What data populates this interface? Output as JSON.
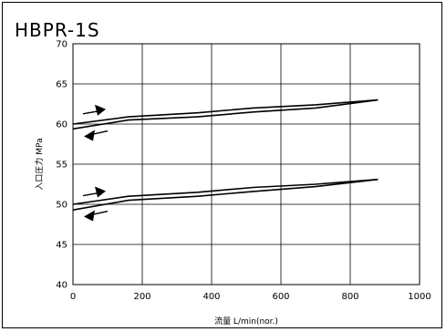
{
  "chart_data": {
    "type": "line",
    "title": "HBPR-1S",
    "xlabel": "流量 L/min(nor.)",
    "ylabel": "入口圧力 MPa",
    "xlim": [
      0,
      1000
    ],
    "ylim": [
      40,
      70
    ],
    "xticks": [
      0,
      200,
      400,
      600,
      800,
      1000
    ],
    "yticks": [
      40,
      45,
      50,
      55,
      60,
      65,
      70
    ],
    "grid": true,
    "series": [
      {
        "x": [
          0,
          160,
          360,
          520,
          700,
          880
        ],
        "y": [
          60.0,
          60.9,
          61.4,
          62.0,
          62.4,
          63.0
        ]
      },
      {
        "x": [
          0,
          160,
          360,
          520,
          700,
          880
        ],
        "y": [
          59.4,
          60.5,
          60.9,
          61.5,
          62.0,
          63.0
        ]
      },
      {
        "x": [
          0,
          160,
          360,
          520,
          700,
          880
        ],
        "y": [
          50.0,
          51.0,
          51.5,
          52.1,
          52.5,
          53.1
        ]
      },
      {
        "x": [
          0,
          160,
          360,
          520,
          700,
          880
        ],
        "y": [
          49.3,
          50.5,
          51.0,
          51.6,
          52.2,
          53.1
        ]
      }
    ],
    "annotations": [
      {
        "type": "arrow",
        "direction": "right",
        "near": "upper curve pair, increasing flow",
        "y": 61.5
      },
      {
        "type": "arrow",
        "direction": "left",
        "near": "upper curve pair, decreasing flow",
        "y": 58.8
      },
      {
        "type": "arrow",
        "direction": "right",
        "near": "lower curve pair, increasing flow",
        "y": 51.3
      },
      {
        "type": "arrow",
        "direction": "left",
        "near": "lower curve pair, decreasing flow",
        "y": 48.8
      }
    ]
  }
}
